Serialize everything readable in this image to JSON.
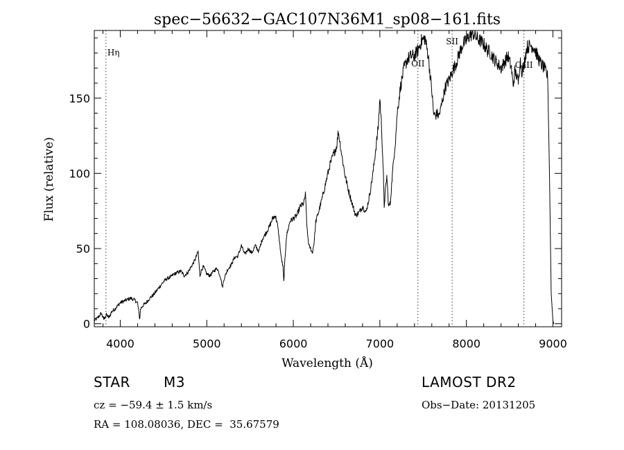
{
  "chart_data": {
    "type": "line",
    "title": "spec−56632−GAC107N36M1_sp08−161.fits",
    "xlabel": "Wavelength (Å)",
    "ylabel": "Flux (relative)",
    "xlim": [
      3700,
      9100
    ],
    "ylim": [
      -2,
      195
    ],
    "x_ticks": [
      4000,
      5000,
      6000,
      7000,
      8000,
      9000
    ],
    "y_ticks": [
      0,
      50,
      100,
      150
    ],
    "grid": false,
    "series": [
      {
        "x": [
          3700,
          3740,
          3780,
          3810,
          3840,
          3870,
          3900,
          3940,
          3970,
          4000,
          4040,
          4080,
          4120,
          4160,
          4200,
          4225,
          4235,
          4260,
          4300,
          4340,
          4380,
          4420,
          4460,
          4500,
          4540,
          4580,
          4620,
          4660,
          4700,
          4740,
          4780,
          4820,
          4860,
          4880,
          4900,
          4920,
          4940,
          4960,
          5000,
          5040,
          5080,
          5120,
          5160,
          5180,
          5200,
          5240,
          5280,
          5320,
          5360,
          5400,
          5440,
          5480,
          5520,
          5560,
          5600,
          5640,
          5680,
          5720,
          5760,
          5790,
          5810,
          5830,
          5860,
          5880,
          5890,
          5900,
          5920,
          5960,
          6000,
          6040,
          6080,
          6120,
          6140,
          6160,
          6180,
          6200,
          6220,
          6240,
          6260,
          6300,
          6340,
          6380,
          6420,
          6460,
          6500,
          6520,
          6540,
          6560,
          6580,
          6600,
          6640,
          6680,
          6700,
          6720,
          6760,
          6800,
          6840,
          6880,
          6920,
          6960,
          6980,
          7000,
          7020,
          7040,
          7050,
          7060,
          7080,
          7100,
          7120,
          7140,
          7160,
          7180,
          7200,
          7240,
          7280,
          7320,
          7360,
          7400,
          7440,
          7480,
          7520,
          7560,
          7580,
          7600,
          7620,
          7640,
          7660,
          7680,
          7700,
          7720,
          7740,
          7760,
          7800,
          7840,
          7880,
          7920,
          7960,
          8000,
          8040,
          8080,
          8120,
          8160,
          8200,
          8240,
          8280,
          8320,
          8360,
          8400,
          8440,
          8480,
          8520,
          8540,
          8560,
          8580,
          8600,
          8620,
          8640,
          8660,
          8680,
          8700,
          8740,
          8780,
          8820,
          8860,
          8900,
          8940,
          8960,
          8980,
          9000,
          9010
        ],
        "y": [
          2,
          4,
          7,
          3,
          6,
          4,
          8,
          10,
          12,
          14,
          15,
          16,
          17,
          16,
          14,
          3,
          10,
          12,
          14,
          17,
          19,
          22,
          25,
          28,
          30,
          31,
          33,
          34,
          35,
          32,
          34,
          38,
          42,
          45,
          48,
          32,
          36,
          38,
          33,
          32,
          35,
          37,
          31,
          24,
          30,
          36,
          39,
          44,
          45,
          52,
          46,
          50,
          47,
          52,
          48,
          56,
          60,
          64,
          70,
          72,
          68,
          60,
          44,
          38,
          28,
          40,
          58,
          68,
          70,
          72,
          78,
          80,
          86,
          62,
          52,
          50,
          47,
          54,
          68,
          76,
          85,
          95,
          105,
          112,
          118,
          128,
          120,
          112,
          105,
          98,
          88,
          80,
          76,
          72,
          74,
          78,
          74,
          85,
          100,
          120,
          130,
          150,
          130,
          100,
          78,
          86,
          98,
          78,
          80,
          96,
          110,
          122,
          140,
          158,
          170,
          176,
          178,
          178,
          182,
          188,
          190,
          178,
          166,
          155,
          140,
          138,
          140,
          138,
          142,
          148,
          153,
          158,
          162,
          168,
          173,
          180,
          186,
          188,
          192,
          193,
          190,
          188,
          186,
          182,
          180,
          176,
          173,
          170,
          174,
          178,
          170,
          158,
          168,
          165,
          160,
          176,
          168,
          170,
          178,
          184,
          185,
          184,
          178,
          173,
          170,
          164,
          100,
          20,
          2,
          0
        ]
      }
    ],
    "annotations": [
      {
        "label": "Hη",
        "x": 3835
      },
      {
        "label": "OII",
        "x": 7440
      },
      {
        "label": "SII",
        "x": 7835
      },
      {
        "label": "CaII",
        "x": 8665
      }
    ]
  },
  "info": {
    "object_class": "STAR",
    "subclass": "M3",
    "cz": "cz = −59.4 ± 1.5 km/s",
    "coords": "RA = 108.08036, DEC =  35.67579",
    "survey": "LAMOST DR2",
    "obs_date": "Obs−Date: 20131205"
  }
}
